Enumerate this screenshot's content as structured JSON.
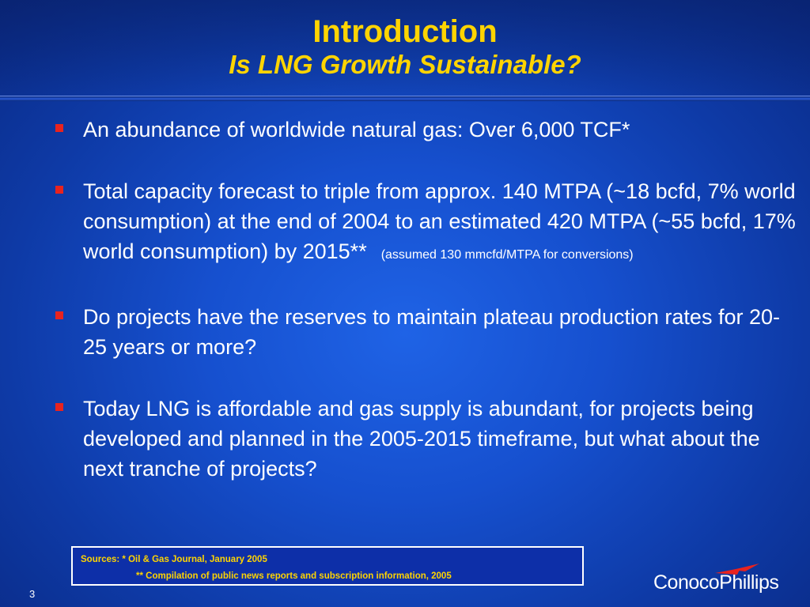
{
  "slide": {
    "title": "Introduction",
    "subtitle": "Is LNG Growth Sustainable?",
    "bullets": [
      {
        "text": "An abundance of worldwide natural gas: Over 6,000 TCF*",
        "note": ""
      },
      {
        "text": "Total capacity forecast to triple from approx. 140 MTPA (~18 bcfd, 7% world consumption) at the end of 2004 to an estimated 420 MTPA (~55 bcfd, 17% world consumption) by 2015**",
        "note": "(assumed 130 mmcfd/MTPA for conversions)"
      },
      {
        "text": "Do projects have the reserves to maintain plateau production rates for 20-25 years or more?",
        "note": ""
      },
      {
        "text": "Today LNG is affordable and gas supply is abundant, for projects being developed and planned in the 2005-2015 timeframe, but what about the next tranche of projects?",
        "note": ""
      }
    ],
    "sources": {
      "line1": "Sources: * Oil & Gas Journal, January 2005",
      "line2": "** Compilation of public news reports and subscription information, 2005"
    },
    "page_number": "3",
    "logo": "ConocoPhillips"
  },
  "colors": {
    "title": "#ffd400",
    "background": "#1650cf",
    "bullet_marker": "#e8231f",
    "body_text": "#ffffff",
    "logo_mark": "#e8231f"
  }
}
